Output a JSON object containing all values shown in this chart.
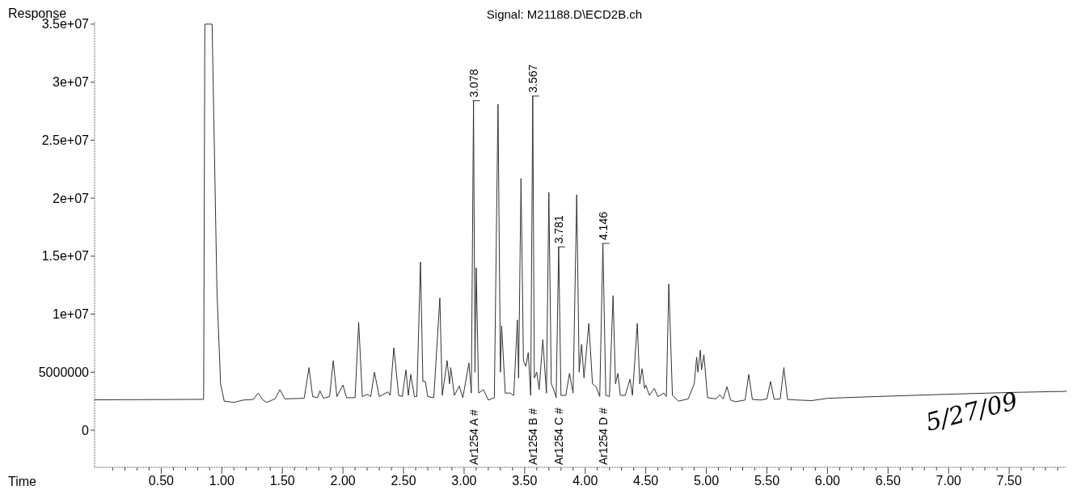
{
  "chart_data": {
    "type": "line",
    "title": "Signal: M21188.D\\ECD2B.ch",
    "xlabel": "Time",
    "ylabel": "Response",
    "color": "#333333",
    "x": [
      -0.05,
      0.5,
      0.85,
      0.86,
      0.92,
      0.96,
      0.99,
      1.02,
      1.1,
      1.18,
      1.26,
      1.3,
      1.34,
      1.37,
      1.44,
      1.48,
      1.52,
      1.68,
      1.72,
      1.75,
      1.79,
      1.81,
      1.84,
      1.89,
      1.92,
      1.95,
      2.0,
      2.03,
      2.1,
      2.13,
      2.16,
      2.2,
      2.23,
      2.26,
      2.3,
      2.37,
      2.39,
      2.42,
      2.46,
      2.49,
      2.52,
      2.54,
      2.56,
      2.59,
      2.61,
      2.64,
      2.66,
      2.68,
      2.7,
      2.75,
      2.8,
      2.82,
      2.86,
      2.88,
      2.89,
      2.92,
      2.96,
      2.99,
      3.04,
      3.06,
      3.078,
      3.09,
      3.1,
      3.12,
      3.16,
      3.2,
      3.25,
      3.28,
      3.3,
      3.31,
      3.34,
      3.38,
      3.41,
      3.44,
      3.45,
      3.47,
      3.49,
      3.51,
      3.53,
      3.55,
      3.567,
      3.58,
      3.6,
      3.62,
      3.65,
      3.68,
      3.7,
      3.72,
      3.74,
      3.76,
      3.781,
      3.8,
      3.84,
      3.87,
      3.9,
      3.93,
      3.95,
      3.97,
      3.99,
      4.03,
      4.06,
      4.09,
      4.12,
      4.146,
      4.17,
      4.2,
      4.23,
      4.25,
      4.27,
      4.29,
      4.33,
      4.37,
      4.39,
      4.43,
      4.45,
      4.47,
      4.49,
      4.5,
      4.53,
      4.57,
      4.6,
      4.65,
      4.67,
      4.69,
      4.72,
      4.77,
      4.85,
      4.9,
      4.92,
      4.93,
      4.95,
      4.96,
      4.98,
      5.01,
      5.08,
      5.11,
      5.14,
      5.17,
      5.2,
      5.24,
      5.32,
      5.35,
      5.38,
      5.45,
      5.5,
      5.53,
      5.56,
      5.61,
      5.64,
      5.67,
      5.75,
      5.87,
      6.0,
      6.4,
      7.0,
      7.5,
      7.98
    ],
    "values": [
      2620000,
      2640000,
      2660000,
      35000000,
      35000000,
      12000000,
      4000000,
      2500000,
      2400000,
      2600000,
      2650000,
      3200000,
      2600000,
      2400000,
      2700000,
      3500000,
      2700000,
      2750000,
      5400000,
      2900000,
      2800000,
      3400000,
      2750000,
      2900000,
      6000000,
      2900000,
      3900000,
      2800000,
      2800000,
      9300000,
      2900000,
      3100000,
      2900000,
      5000000,
      2900000,
      3300000,
      3000000,
      7100000,
      3000000,
      2900000,
      5200000,
      3000000,
      4800000,
      2900000,
      2900000,
      14500000,
      4200000,
      4200000,
      2900000,
      2800000,
      11400000,
      3000000,
      6000000,
      4000000,
      5400000,
      3000000,
      3800000,
      2800000,
      5800000,
      3200000,
      28400000,
      5000000,
      14000000,
      3200000,
      3500000,
      2600000,
      2800000,
      28100000,
      5000000,
      9000000,
      3200000,
      3200000,
      3000000,
      9500000,
      4500000,
      21700000,
      6000000,
      5500000,
      6700000,
      3000000,
      28800000,
      4500000,
      5000000,
      3500000,
      7800000,
      3200000,
      20500000,
      4000000,
      3500000,
      2800000,
      15800000,
      3000000,
      3000000,
      4900000,
      3200000,
      20300000,
      5000000,
      7400000,
      4500000,
      9200000,
      4000000,
      3750000,
      2900000,
      16100000,
      3000000,
      2900000,
      11600000,
      4000000,
      4900000,
      3000000,
      3000000,
      4400000,
      3000000,
      9200000,
      4000000,
      5300000,
      3600000,
      3900000,
      3000000,
      3600000,
      2900000,
      3200000,
      2900000,
      12600000,
      3000000,
      2500000,
      2700000,
      4000000,
      6300000,
      5000000,
      6900000,
      5200000,
      6500000,
      2800000,
      2700000,
      3050000,
      2700000,
      3750000,
      2600000,
      2450000,
      2600000,
      4800000,
      2650000,
      2600000,
      2700000,
      4200000,
      2650000,
      2700000,
      5400000,
      2650000,
      2600000,
      2550000,
      2750000,
      2900000,
      3100000,
      3250000,
      3350000
    ],
    "xlim": [
      -0.05,
      7.98
    ],
    "ylim": [
      -3200000,
      35200000
    ],
    "xticks": [
      {
        "value": 0.1,
        "label": null
      },
      {
        "value": 0.2,
        "label": null
      },
      {
        "value": 0.3,
        "label": null
      },
      {
        "value": 0.4,
        "label": null
      },
      {
        "value": 0.5,
        "label": "0.50"
      },
      {
        "value": 0.6,
        "label": null
      },
      {
        "value": 0.7,
        "label": null
      },
      {
        "value": 0.8,
        "label": null
      },
      {
        "value": 0.9,
        "label": null
      },
      {
        "value": 1.0,
        "label": "1.00"
      },
      {
        "value": 1.1,
        "label": null
      },
      {
        "value": 1.2,
        "label": null
      },
      {
        "value": 1.3,
        "label": null
      },
      {
        "value": 1.4,
        "label": null
      },
      {
        "value": 1.5,
        "label": "1.50"
      },
      {
        "value": 1.6,
        "label": null
      },
      {
        "value": 1.7,
        "label": null
      },
      {
        "value": 1.8,
        "label": null
      },
      {
        "value": 1.9,
        "label": null
      },
      {
        "value": 2.0,
        "label": "2.00"
      },
      {
        "value": 2.1,
        "label": null
      },
      {
        "value": 2.2,
        "label": null
      },
      {
        "value": 2.3,
        "label": null
      },
      {
        "value": 2.4,
        "label": null
      },
      {
        "value": 2.5,
        "label": "2.50"
      },
      {
        "value": 2.6,
        "label": null
      },
      {
        "value": 2.7,
        "label": null
      },
      {
        "value": 2.8,
        "label": null
      },
      {
        "value": 2.9,
        "label": null
      },
      {
        "value": 3.0,
        "label": "3.00"
      },
      {
        "value": 3.1,
        "label": null
      },
      {
        "value": 3.2,
        "label": null
      },
      {
        "value": 3.3,
        "label": null
      },
      {
        "value": 3.4,
        "label": null
      },
      {
        "value": 3.5,
        "label": "3.50"
      },
      {
        "value": 3.6,
        "label": null
      },
      {
        "value": 3.7,
        "label": null
      },
      {
        "value": 3.8,
        "label": null
      },
      {
        "value": 3.9,
        "label": null
      },
      {
        "value": 4.0,
        "label": "4.00"
      },
      {
        "value": 4.1,
        "label": null
      },
      {
        "value": 4.2,
        "label": null
      },
      {
        "value": 4.3,
        "label": null
      },
      {
        "value": 4.4,
        "label": null
      },
      {
        "value": 4.5,
        "label": "4.50"
      },
      {
        "value": 4.6,
        "label": null
      },
      {
        "value": 4.7,
        "label": null
      },
      {
        "value": 4.8,
        "label": null
      },
      {
        "value": 4.9,
        "label": null
      },
      {
        "value": 5.0,
        "label": "5.00"
      },
      {
        "value": 5.1,
        "label": null
      },
      {
        "value": 5.2,
        "label": null
      },
      {
        "value": 5.3,
        "label": null
      },
      {
        "value": 5.4,
        "label": null
      },
      {
        "value": 5.5,
        "label": "5.50"
      },
      {
        "value": 5.6,
        "label": null
      },
      {
        "value": 5.7,
        "label": null
      },
      {
        "value": 5.8,
        "label": null
      },
      {
        "value": 5.9,
        "label": null
      },
      {
        "value": 6.0,
        "label": "6.00"
      },
      {
        "value": 6.1,
        "label": null
      },
      {
        "value": 6.2,
        "label": null
      },
      {
        "value": 6.3,
        "label": null
      },
      {
        "value": 6.4,
        "label": null
      },
      {
        "value": 6.5,
        "label": "6.50"
      },
      {
        "value": 6.6,
        "label": null
      },
      {
        "value": 6.7,
        "label": null
      },
      {
        "value": 6.8,
        "label": null
      },
      {
        "value": 6.9,
        "label": null
      },
      {
        "value": 7.0,
        "label": "7.00"
      },
      {
        "value": 7.1,
        "label": null
      },
      {
        "value": 7.2,
        "label": null
      },
      {
        "value": 7.3,
        "label": null
      },
      {
        "value": 7.4,
        "label": null
      },
      {
        "value": 7.5,
        "label": "7.50"
      },
      {
        "value": 7.6,
        "label": null
      },
      {
        "value": 7.7,
        "label": null
      },
      {
        "value": 7.8,
        "label": null
      },
      {
        "value": 7.9,
        "label": null
      }
    ],
    "yticks": [
      0,
      {
        "value": 5000000,
        "label": "5000000"
      },
      {
        "value": 10000000,
        "label": "1e+07"
      },
      {
        "value": 15000000,
        "label": "1.5e+07"
      },
      {
        "value": 20000000,
        "label": "2e+07"
      },
      {
        "value": 25000000,
        "label": "2.5e+07"
      },
      {
        "value": 30000000,
        "label": "3e+07"
      },
      {
        "value": 35000000,
        "label": "3.5e+07"
      }
    ],
    "annotations": [
      {
        "text": "3.078",
        "x": 3.078,
        "y": 28400000
      },
      {
        "text": "3.567",
        "x": 3.567,
        "y": 28800000
      },
      {
        "text": "3.781",
        "x": 3.781,
        "y": 15800000
      },
      {
        "text": "4.146",
        "x": 4.146,
        "y": 16100000
      },
      "Ar1254 A #",
      "Ar1254 B #",
      "Ar1254 C #",
      "Ar1254 D #",
      "5/27/09"
    ]
  }
}
